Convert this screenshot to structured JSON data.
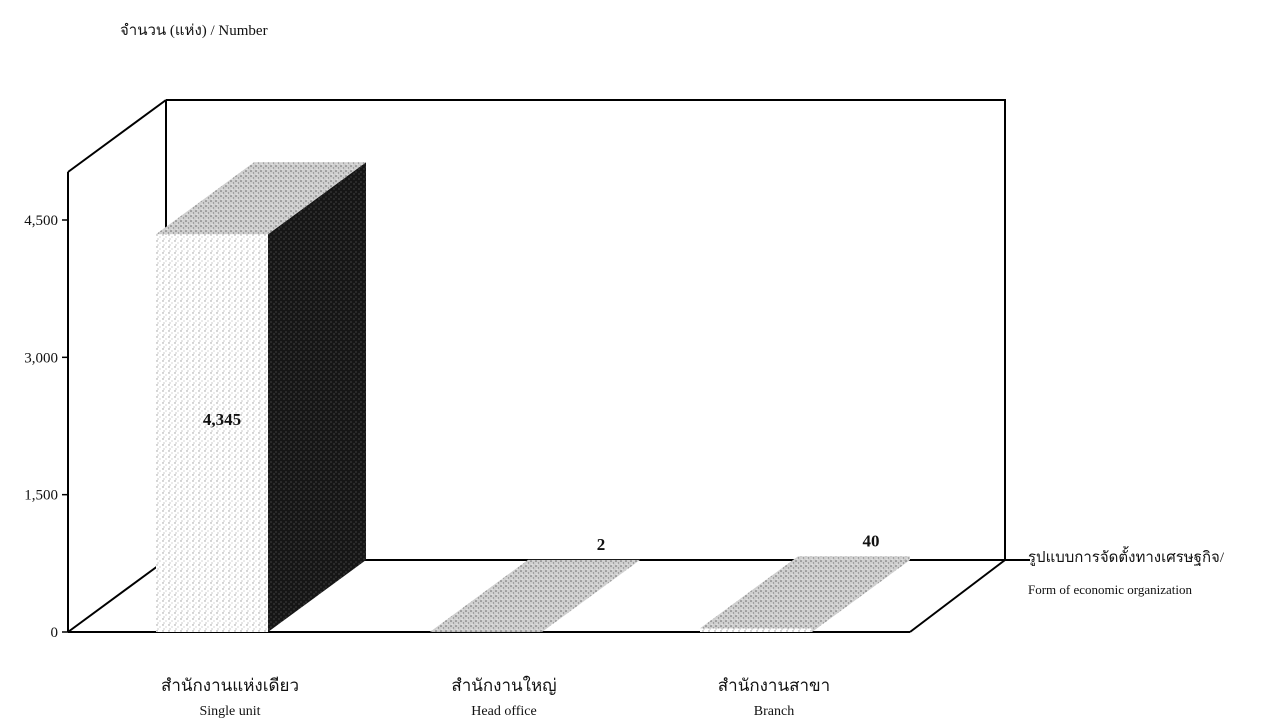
{
  "chart_data": {
    "type": "bar",
    "ylabel": "จำนวน (แห่ง)  /  Number",
    "xlabel_th": "รูปแบบการจัดตั้งทางเศรษฐกิจ/",
    "xlabel_en": "Form of  economic organization",
    "categories": [
      {
        "th": "สำนักงานแห่งเดียว",
        "en": "Single unit"
      },
      {
        "th": "สำนักงานใหญ่",
        "en": "Head office"
      },
      {
        "th": "สำนักงานสาขา",
        "en": "Branch"
      }
    ],
    "values": [
      4345,
      2,
      40
    ],
    "value_labels": [
      "4,345",
      "2",
      "40"
    ],
    "yticks": [
      "0",
      "1,500",
      "3,000",
      "4,500"
    ],
    "ytick_values": [
      0,
      1500,
      3000,
      4500
    ],
    "ylim": [
      0,
      4500
    ],
    "grid": false,
    "legend": "none"
  }
}
